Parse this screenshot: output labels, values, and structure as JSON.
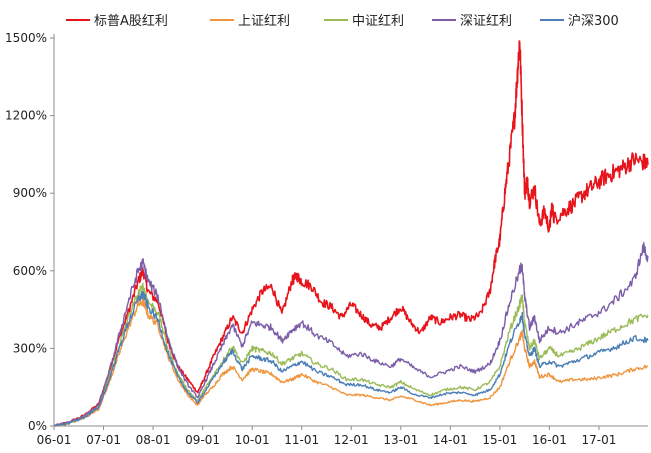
{
  "chart_data": {
    "type": "line",
    "title": "",
    "xlabel": "",
    "ylabel": "",
    "ylim": [
      0,
      1500
    ],
    "y_unit": "%",
    "yticks": [
      0,
      300,
      600,
      900,
      1200,
      1500
    ],
    "ytick_labels": [
      "0%",
      "300%",
      "600%",
      "900%",
      "1200%",
      "1500%"
    ],
    "xlim": [
      2006.0,
      2017.99
    ],
    "x_tick_labels": [
      "06-01",
      "07-01",
      "08-01",
      "09-01",
      "10-01",
      "11-01",
      "12-01",
      "13-01",
      "14-01",
      "15-01",
      "16-01",
      "17-01"
    ],
    "x_ticks": [
      2006,
      2007,
      2008,
      2009,
      2010,
      2011,
      2012,
      2013,
      2014,
      2015,
      2016,
      2017
    ],
    "legend": "top",
    "grid": false,
    "series": [
      {
        "name": "标普A股红利",
        "color": "#e8141b",
        "x": [
          2006.0,
          2006.3,
          2006.6,
          2006.9,
          2007.1,
          2007.3,
          2007.5,
          2007.7,
          2007.8,
          2007.9,
          2008.1,
          2008.3,
          2008.5,
          2008.7,
          2008.9,
          2009.0,
          2009.2,
          2009.4,
          2009.6,
          2009.8,
          2010.0,
          2010.2,
          2010.4,
          2010.6,
          2010.8,
          2010.9,
          2011.0,
          2011.2,
          2011.4,
          2011.6,
          2011.8,
          2012.0,
          2012.2,
          2012.4,
          2012.6,
          2012.8,
          2013.0,
          2013.2,
          2013.4,
          2013.6,
          2013.8,
          2014.0,
          2014.2,
          2014.4,
          2014.6,
          2014.8,
          2014.9,
          2015.0,
          2015.1,
          2015.2,
          2015.3,
          2015.35,
          2015.4,
          2015.45,
          2015.5,
          2015.55,
          2015.6,
          2015.7,
          2015.8,
          2015.9,
          2016.0,
          2016.05,
          2016.1,
          2016.3,
          2016.5,
          2016.7,
          2016.9,
          2017.1,
          2017.3,
          2017.5,
          2017.7,
          2017.9,
          2017.99
        ],
        "y": [
          0,
          15,
          40,
          85,
          200,
          330,
          440,
          560,
          600,
          520,
          480,
          330,
          230,
          180,
          130,
          170,
          260,
          340,
          420,
          360,
          450,
          520,
          540,
          430,
          560,
          580,
          560,
          540,
          480,
          460,
          420,
          470,
          430,
          390,
          380,
          420,
          460,
          400,
          360,
          420,
          400,
          420,
          430,
          410,
          430,
          520,
          640,
          720,
          900,
          1050,
          1200,
          1350,
          1500,
          1200,
          900,
          950,
          870,
          920,
          780,
          830,
          760,
          850,
          800,
          830,
          860,
          900,
          930,
          960,
          980,
          1000,
          1030,
          1020,
          1010
        ]
      },
      {
        "name": "上证红利",
        "color": "#f0943d",
        "x": [
          2006.0,
          2006.3,
          2006.6,
          2006.9,
          2007.1,
          2007.3,
          2007.5,
          2007.7,
          2007.8,
          2007.9,
          2008.1,
          2008.3,
          2008.5,
          2008.7,
          2008.9,
          2009.0,
          2009.2,
          2009.4,
          2009.6,
          2009.8,
          2010.0,
          2010.2,
          2010.4,
          2010.6,
          2010.8,
          2011.0,
          2011.3,
          2011.6,
          2011.9,
          2012.2,
          2012.5,
          2012.8,
          2013.0,
          2013.3,
          2013.6,
          2013.9,
          2014.2,
          2014.5,
          2014.8,
          2015.0,
          2015.2,
          2015.4,
          2015.45,
          2015.5,
          2015.6,
          2015.7,
          2015.8,
          2016.0,
          2016.2,
          2016.5,
          2016.8,
          2017.1,
          2017.4,
          2017.7,
          2017.99
        ],
        "y": [
          0,
          10,
          30,
          65,
          160,
          270,
          380,
          470,
          480,
          430,
          390,
          270,
          180,
          120,
          80,
          110,
          150,
          200,
          230,
          180,
          220,
          210,
          200,
          170,
          180,
          200,
          170,
          150,
          120,
          120,
          110,
          100,
          115,
          100,
          80,
          90,
          100,
          95,
          110,
          150,
          250,
          340,
          360,
          300,
          230,
          250,
          190,
          200,
          170,
          180,
          180,
          190,
          200,
          220,
          230
        ]
      },
      {
        "name": "中证红利",
        "color": "#9bbb59",
        "x": [
          2006.0,
          2006.3,
          2006.6,
          2006.9,
          2007.1,
          2007.3,
          2007.5,
          2007.7,
          2007.8,
          2007.9,
          2008.1,
          2008.3,
          2008.5,
          2008.7,
          2008.9,
          2009.0,
          2009.2,
          2009.4,
          2009.6,
          2009.8,
          2010.0,
          2010.2,
          2010.4,
          2010.6,
          2010.8,
          2011.0,
          2011.3,
          2011.6,
          2011.9,
          2012.2,
          2012.5,
          2012.8,
          2013.0,
          2013.3,
          2013.6,
          2013.9,
          2014.2,
          2014.5,
          2014.8,
          2015.0,
          2015.2,
          2015.4,
          2015.45,
          2015.5,
          2015.6,
          2015.7,
          2015.8,
          2016.0,
          2016.2,
          2016.5,
          2016.8,
          2017.1,
          2017.4,
          2017.7,
          2017.99
        ],
        "y": [
          0,
          12,
          35,
          75,
          180,
          300,
          420,
          510,
          540,
          480,
          440,
          300,
          200,
          140,
          95,
          130,
          190,
          250,
          310,
          240,
          300,
          290,
          280,
          240,
          260,
          280,
          240,
          220,
          180,
          180,
          160,
          150,
          170,
          140,
          120,
          140,
          150,
          140,
          170,
          230,
          370,
          470,
          500,
          400,
          300,
          330,
          260,
          300,
          270,
          290,
          320,
          350,
          380,
          410,
          430
        ]
      },
      {
        "name": "深证红利",
        "color": "#7b5ea7",
        "x": [
          2006.0,
          2006.3,
          2006.6,
          2006.9,
          2007.1,
          2007.3,
          2007.5,
          2007.7,
          2007.8,
          2007.9,
          2008.1,
          2008.3,
          2008.5,
          2008.7,
          2008.9,
          2009.0,
          2009.2,
          2009.4,
          2009.6,
          2009.8,
          2010.0,
          2010.2,
          2010.4,
          2010.6,
          2010.8,
          2011.0,
          2011.3,
          2011.6,
          2011.9,
          2012.2,
          2012.5,
          2012.8,
          2013.0,
          2013.3,
          2013.6,
          2013.9,
          2014.2,
          2014.5,
          2014.8,
          2015.0,
          2015.2,
          2015.4,
          2015.45,
          2015.5,
          2015.6,
          2015.7,
          2015.8,
          2016.0,
          2016.2,
          2016.5,
          2016.8,
          2017.1,
          2017.4,
          2017.7,
          2017.9,
          2017.99
        ],
        "y": [
          0,
          14,
          38,
          80,
          200,
          340,
          480,
          600,
          630,
          560,
          500,
          340,
          230,
          160,
          110,
          150,
          230,
          310,
          390,
          310,
          400,
          390,
          380,
          330,
          370,
          400,
          350,
          320,
          270,
          280,
          250,
          230,
          260,
          220,
          190,
          210,
          230,
          210,
          240,
          330,
          480,
          600,
          620,
          500,
          380,
          420,
          330,
          380,
          360,
          390,
          420,
          450,
          500,
          560,
          690,
          650
        ]
      },
      {
        "name": "沪深300",
        "color": "#4a7eb5",
        "x": [
          2006.0,
          2006.3,
          2006.6,
          2006.9,
          2007.1,
          2007.3,
          2007.5,
          2007.7,
          2007.8,
          2007.9,
          2008.1,
          2008.3,
          2008.5,
          2008.7,
          2008.9,
          2009.0,
          2009.2,
          2009.4,
          2009.6,
          2009.8,
          2010.0,
          2010.2,
          2010.4,
          2010.6,
          2010.8,
          2011.0,
          2011.3,
          2011.6,
          2011.9,
          2012.2,
          2012.5,
          2012.8,
          2013.0,
          2013.3,
          2013.6,
          2013.9,
          2014.2,
          2014.5,
          2014.8,
          2015.0,
          2015.2,
          2015.4,
          2015.45,
          2015.5,
          2015.6,
          2015.7,
          2015.8,
          2016.0,
          2016.2,
          2016.5,
          2016.8,
          2017.1,
          2017.4,
          2017.7,
          2017.99
        ],
        "y": [
          0,
          12,
          32,
          70,
          170,
          290,
          400,
          490,
          510,
          460,
          410,
          280,
          190,
          130,
          90,
          120,
          180,
          240,
          290,
          220,
          270,
          260,
          250,
          210,
          230,
          250,
          210,
          190,
          160,
          160,
          140,
          130,
          150,
          120,
          110,
          125,
          130,
          120,
          140,
          200,
          320,
          410,
          430,
          350,
          270,
          300,
          230,
          250,
          230,
          250,
          270,
          290,
          310,
          340,
          330
        ]
      }
    ]
  }
}
